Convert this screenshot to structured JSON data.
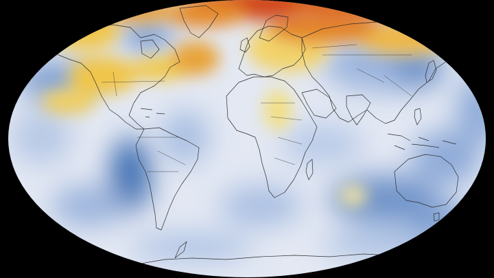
{
  "map": {
    "projection": "robinson-like-ellipse",
    "background_color": "#000000",
    "ocean_base_color": "#e3e8f3",
    "coastline_color": "#2a2a2a",
    "palette": {
      "cold_strong": "#4a78b8",
      "cold": "#93b0da",
      "neutral": "#eef0f6",
      "warm": "#f3dc7a",
      "warm_strong": "#e9a53e",
      "hot": "#d9541c"
    }
  }
}
